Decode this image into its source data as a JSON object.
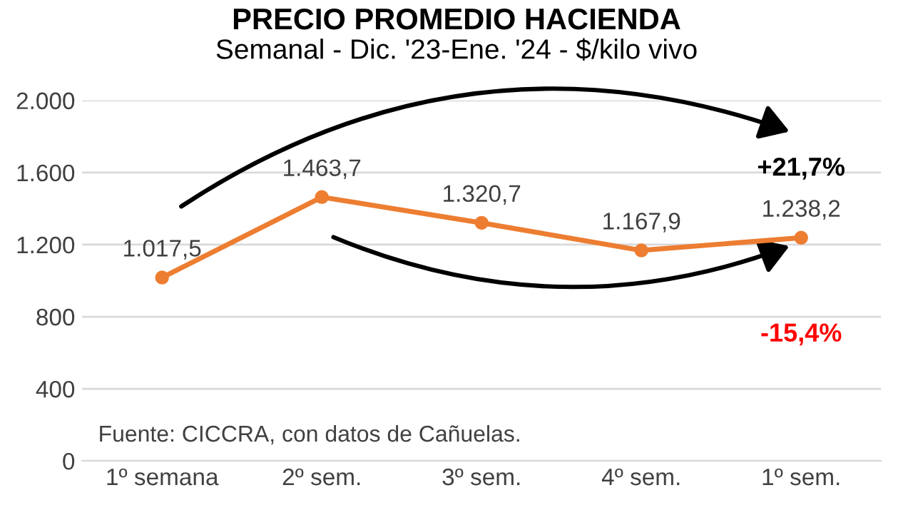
{
  "chart_data": {
    "type": "line",
    "title": "PRECIO PROMEDIO HACIENDA",
    "subtitle": "Semanal - Dic. '23-Ene. '24 - $/kilo vivo",
    "categories": [
      "1º semana",
      "2º sem.",
      "3º sem.",
      "4º sem.",
      "1º sem."
    ],
    "series": [
      {
        "color": "#ed7d31",
        "values": [
          1017.5,
          1463.7,
          1320.7,
          1167.9,
          1238.2
        ],
        "value_labels": [
          "1.017,5",
          "1.463,7",
          "1.320,7",
          "1.167,9",
          "1.238,2"
        ]
      }
    ],
    "ylim": [
      0,
      2000
    ],
    "yticks": [
      0,
      {
        "value": 400,
        "label": "400"
      },
      {
        "value": 800,
        "label": "800"
      },
      {
        "value": 1200,
        "label": "1.200"
      },
      {
        "value": 1600,
        "label": "1.600"
      },
      {
        "value": 2000,
        "label": "2.000"
      }
    ],
    "grid": "y",
    "marker": "circle",
    "line_style": "solid",
    "annotations": [
      "+21,7%",
      "-15,4%",
      "Fuente: CICCRA, con datos de Cañuelas."
    ]
  }
}
